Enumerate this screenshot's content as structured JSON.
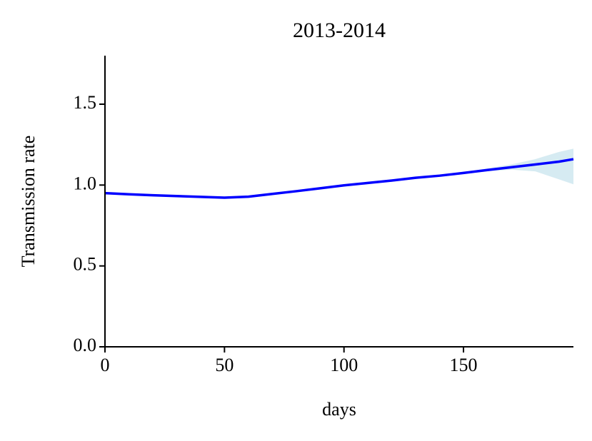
{
  "chart_data": {
    "type": "line",
    "title": "2013-2014",
    "x_label": "days",
    "y_label": "Transmission rate",
    "x": [
      0,
      10,
      20,
      30,
      40,
      50,
      60,
      70,
      80,
      90,
      100,
      110,
      120,
      130,
      140,
      150,
      160,
      170,
      180,
      190,
      196
    ],
    "series": [
      {
        "color": "#0000ff",
        "values": [
          0.95,
          0.943,
          0.937,
          0.932,
          0.927,
          0.922,
          0.928,
          0.945,
          0.962,
          0.98,
          0.998,
          1.013,
          1.028,
          1.045,
          1.058,
          1.075,
          1.093,
          1.11,
          1.127,
          1.145,
          1.16
        ]
      }
    ],
    "band": {
      "color": "#add8e6",
      "lower": [
        0.945,
        0.938,
        0.932,
        0.927,
        0.922,
        0.917,
        0.923,
        0.94,
        0.957,
        0.975,
        0.993,
        1.008,
        1.023,
        1.04,
        1.053,
        1.07,
        1.085,
        1.095,
        1.085,
        1.035,
        1.005
      ],
      "upper": [
        0.955,
        0.948,
        0.942,
        0.937,
        0.932,
        0.927,
        0.933,
        0.95,
        0.967,
        0.985,
        1.003,
        1.018,
        1.033,
        1.05,
        1.063,
        1.08,
        1.103,
        1.128,
        1.16,
        1.205,
        1.225
      ]
    },
    "xlim": [
      0,
      196
    ],
    "ylim": [
      0,
      1.8
    ],
    "xticks": [
      0,
      50,
      100,
      150
    ],
    "yticks": [
      {
        "value": 0,
        "label": "0.0"
      },
      0.5,
      {
        "value": 1,
        "label": "1.0"
      },
      1.5
    ]
  }
}
